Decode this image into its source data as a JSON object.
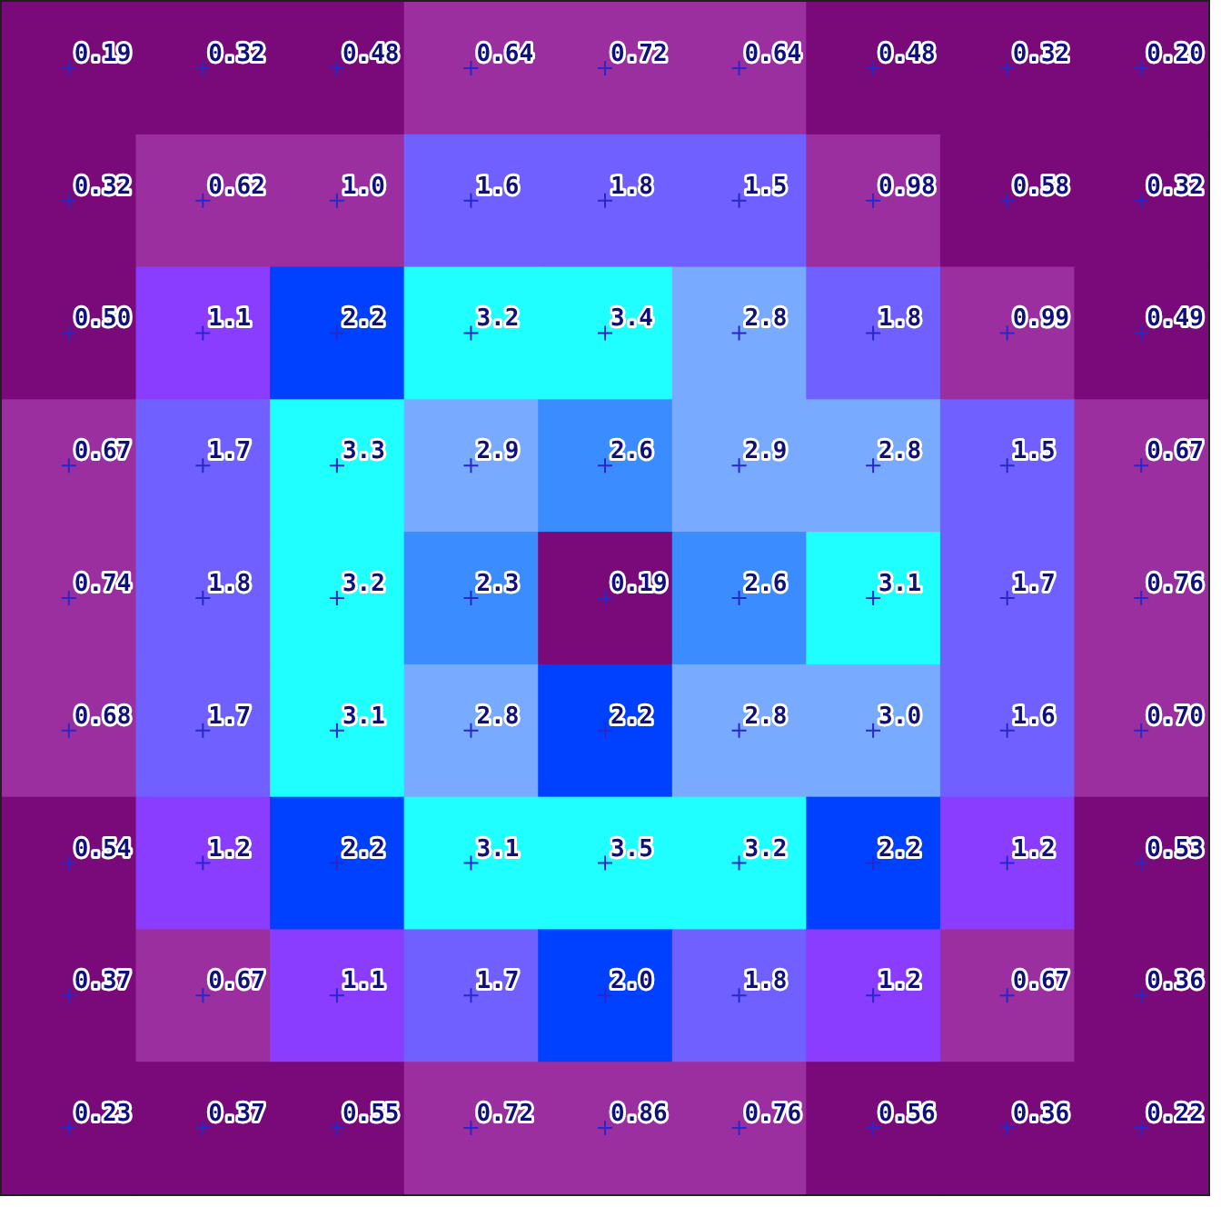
{
  "chart_data": {
    "type": "heatmap",
    "categories": [
      null,
      null,
      null,
      null,
      null,
      null,
      null,
      null,
      null
    ],
    "y_categories": [
      null,
      null,
      null,
      null,
      null,
      null,
      null,
      null,
      null
    ],
    "cells": [
      [
        0.19,
        0.32,
        0.48,
        0.64,
        0.72,
        0.64,
        0.48,
        0.32,
        0.2
      ],
      [
        0.32,
        0.62,
        1.0,
        1.6,
        1.8,
        1.5,
        0.98,
        0.58,
        0.32
      ],
      [
        0.5,
        1.1,
        2.2,
        3.2,
        3.4,
        2.8,
        1.8,
        0.99,
        0.49
      ],
      [
        0.67,
        1.7,
        3.3,
        2.9,
        2.6,
        2.9,
        2.8,
        1.5,
        0.67
      ],
      [
        0.74,
        1.8,
        3.2,
        2.3,
        0.19,
        2.6,
        3.1,
        1.7,
        0.76
      ],
      [
        0.68,
        1.7,
        3.1,
        2.8,
        2.2,
        2.8,
        3.0,
        1.6,
        0.7
      ],
      [
        0.54,
        1.2,
        2.2,
        3.1,
        3.5,
        3.2,
        2.2,
        1.2,
        0.53
      ],
      [
        0.37,
        0.67,
        1.1,
        1.7,
        2.0,
        1.8,
        1.2,
        0.67,
        0.36
      ],
      [
        0.23,
        0.37,
        0.55,
        0.72,
        0.86,
        0.76,
        0.56,
        0.36,
        0.22
      ]
    ],
    "cell_labels": [
      [
        "0.19",
        "0.32",
        "0.48",
        "0.64",
        "0.72",
        "0.64",
        "0.48",
        "0.32",
        "0.20"
      ],
      [
        "0.32",
        "0.62",
        "1.0",
        "1.6",
        "1.8",
        "1.5",
        "0.98",
        "0.58",
        "0.32"
      ],
      [
        "0.50",
        "1.1",
        "2.2",
        "3.2",
        "3.4",
        "2.8",
        "1.8",
        "0.99",
        "0.49"
      ],
      [
        "0.67",
        "1.7",
        "3.3",
        "2.9",
        "2.6",
        "2.9",
        "2.8",
        "1.5",
        "0.67"
      ],
      [
        "0.74",
        "1.8",
        "3.2",
        "2.3",
        "0.19",
        "2.6",
        "3.1",
        "1.7",
        "0.76"
      ],
      [
        "0.68",
        "1.7",
        "3.1",
        "2.8",
        "2.2",
        "2.8",
        "3.0",
        "1.6",
        "0.70"
      ],
      [
        "0.54",
        "1.2",
        "2.2",
        "3.1",
        "3.5",
        "3.2",
        "2.2",
        "1.2",
        "0.53"
      ],
      [
        "0.37",
        "0.67",
        "1.1",
        "1.7",
        "2.0",
        "1.8",
        "1.2",
        "0.67",
        "0.36"
      ],
      [
        "0.23",
        "0.37",
        "0.55",
        "0.72",
        "0.86",
        "0.76",
        "0.56",
        "0.36",
        "0.22"
      ]
    ]
  }
}
